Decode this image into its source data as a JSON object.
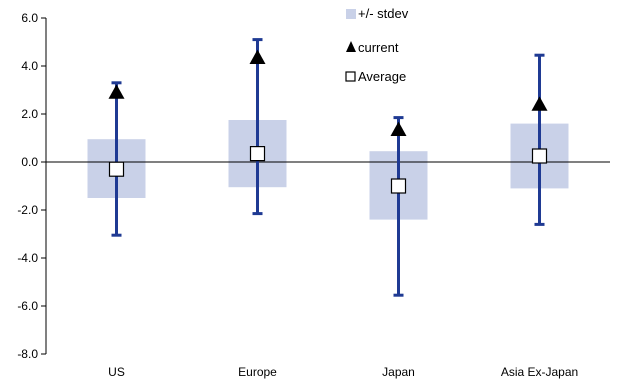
{
  "chart_data": {
    "type": "scatter",
    "categories": [
      "US",
      "Europe",
      "Japan",
      "Asia Ex-Japan"
    ],
    "ylim": [
      -8.0,
      6.0
    ],
    "yticks": [
      -8.0,
      -6.0,
      -4.0,
      -2.0,
      0.0,
      2.0,
      4.0,
      6.0
    ],
    "ytick_labels": [
      "-8.0",
      "-6.0",
      "-4.0",
      "-2.0",
      "0.0",
      "2.0",
      "4.0",
      "6.0"
    ],
    "grid": false,
    "legend_position": "top-center",
    "series": [
      {
        "name": "+/- stdev",
        "kind": "band",
        "color": "#c9d1e8",
        "low": [
          -1.5,
          -1.05,
          -2.4,
          -1.1
        ],
        "high": [
          0.95,
          1.75,
          0.45,
          1.6
        ]
      },
      {
        "name": "current",
        "kind": "triangle",
        "color": "#000000",
        "values": [
          2.9,
          4.35,
          1.35,
          2.4
        ]
      },
      {
        "name": "Average",
        "kind": "square",
        "color": "#000000",
        "values": [
          -0.3,
          0.35,
          -1.0,
          0.25
        ]
      }
    ],
    "error_bars": {
      "color": "#1f3a93",
      "low": [
        -3.05,
        -2.15,
        -5.55,
        -2.6
      ],
      "high": [
        3.3,
        5.1,
        1.85,
        4.45
      ]
    }
  }
}
